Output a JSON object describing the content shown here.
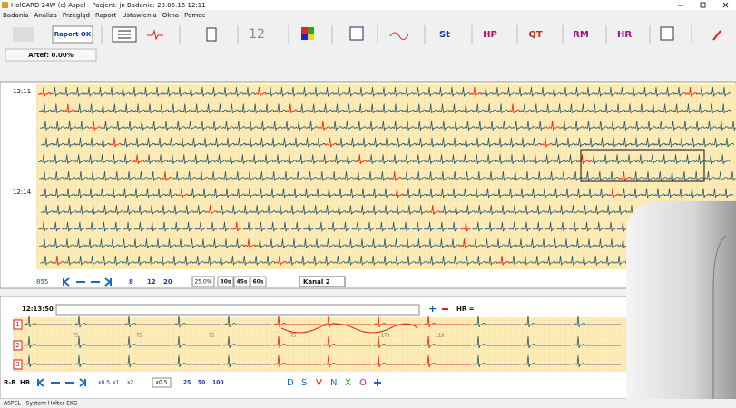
{
  "window": {
    "title": "HolCARD 24W (c) Aspel - Pacjent: jn  Badanie: 28.05.15 12:11",
    "menu": [
      "Badania",
      "Analiza",
      "Przegląd",
      "Raport",
      "Ustawienia",
      "Okna",
      "Pomoc"
    ]
  },
  "toolbar": {
    "report_button": "Raport OK",
    "leads_button": "12",
    "buttons": [
      "St",
      "HP",
      "QT",
      "RM",
      "HR"
    ]
  },
  "artefacts": "Artef: 0.00%",
  "overview": {
    "time_labels": [
      "12:11",
      "12:14"
    ],
    "controls": {
      "count": "855",
      "speeds": [
        "8",
        "12",
        "20"
      ],
      "zoom": "25.0%",
      "windows": [
        "30s",
        "45s",
        "60s"
      ],
      "channel": "Kanal 2"
    }
  },
  "detail": {
    "time": "12:13:50",
    "hr_label": "HR =",
    "channels": [
      "1",
      "2",
      "3"
    ],
    "rr_values": [
      "75",
      "75",
      "75",
      "75",
      "173",
      "110"
    ],
    "controls": {
      "rr": "R-R",
      "hr": "HR",
      "scales": [
        "x0.5",
        "x1",
        "x2"
      ],
      "gain": "x0.5",
      "speeds": [
        "25",
        "50",
        "100"
      ],
      "beat_types": [
        "D",
        "S",
        "V",
        "N",
        "X",
        "O"
      ]
    }
  },
  "status": "ASPEL - System Holter EKG"
}
